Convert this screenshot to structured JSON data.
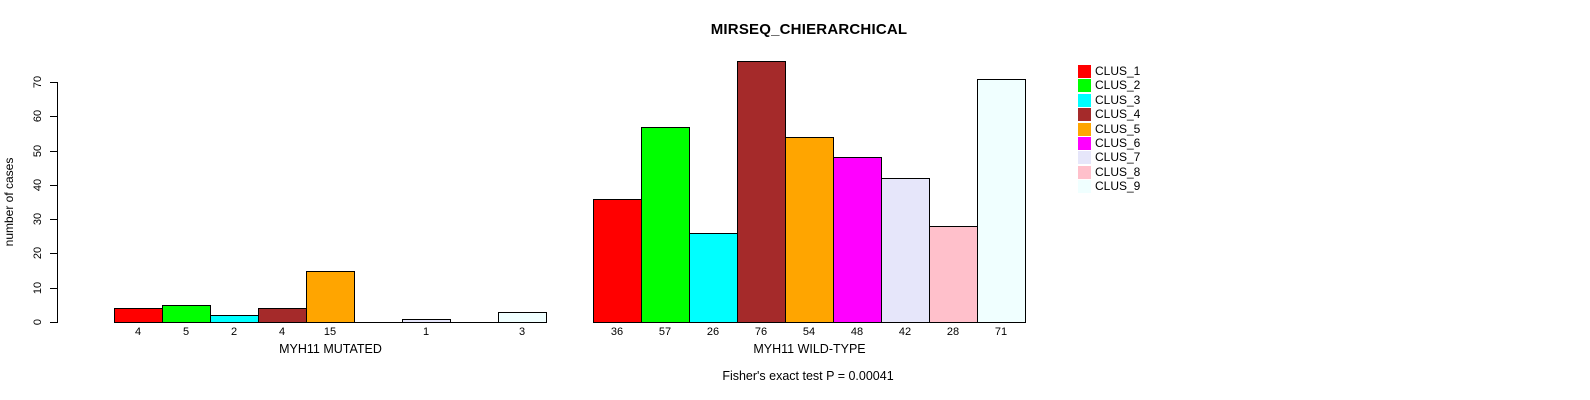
{
  "title": "MIRSEQ_CHIERARCHICAL",
  "annotation": "Fisher's exact test P = 0.00041",
  "y_axis": {
    "label": "number of cases",
    "ticks": [
      0,
      10,
      20,
      30,
      40,
      50,
      60,
      70
    ]
  },
  "legend": {
    "position": "right",
    "entries": [
      {
        "label": "CLUS_1",
        "color": "#FF0000"
      },
      {
        "label": "CLUS_2",
        "color": "#00FF00"
      },
      {
        "label": "CLUS_3",
        "color": "#00FFFF"
      },
      {
        "label": "CLUS_4",
        "color": "#A52A2A"
      },
      {
        "label": "CLUS_5",
        "color": "#FFA500"
      },
      {
        "label": "CLUS_6",
        "color": "#FF00FF"
      },
      {
        "label": "CLUS_7",
        "color": "#E6E6FA"
      },
      {
        "label": "CLUS_8",
        "color": "#FFC0CB"
      },
      {
        "label": "CLUS_9",
        "color": "#F0FFFF"
      }
    ]
  },
  "chart_data": {
    "type": "bar",
    "title": "MIRSEQ_CHIERARCHICAL",
    "ylabel": "number of cases",
    "ylim": [
      0,
      70
    ],
    "yticks": [
      0,
      10,
      20,
      30,
      40,
      50,
      60,
      70
    ],
    "grid": false,
    "legend_position": "right",
    "series_labels": [
      "CLUS_1",
      "CLUS_2",
      "CLUS_3",
      "CLUS_4",
      "CLUS_5",
      "CLUS_6",
      "CLUS_7",
      "CLUS_8",
      "CLUS_9"
    ],
    "series_colors": [
      "#FF0000",
      "#00FF00",
      "#00FFFF",
      "#A52A2A",
      "#FFA500",
      "#FF00FF",
      "#E6E6FA",
      "#FFC0CB",
      "#F0FFFF"
    ],
    "groups": [
      {
        "label": "MYH11 MUTATED",
        "values": [
          4,
          5,
          2,
          4,
          15,
          0,
          1,
          0,
          3
        ],
        "bar_labels": [
          "4",
          "5",
          "2",
          "4",
          "15",
          "",
          "1",
          "",
          "3"
        ]
      },
      {
        "label": "MYH11 WILD-TYPE",
        "values": [
          36,
          57,
          26,
          76,
          54,
          48,
          42,
          28,
          71
        ],
        "bar_labels": [
          "36",
          "57",
          "26",
          "76",
          "54",
          "48",
          "42",
          "28",
          "71"
        ]
      }
    ],
    "annotation": "Fisher's exact test P = 0.00041",
    "bar_outline_color": "#000000"
  }
}
